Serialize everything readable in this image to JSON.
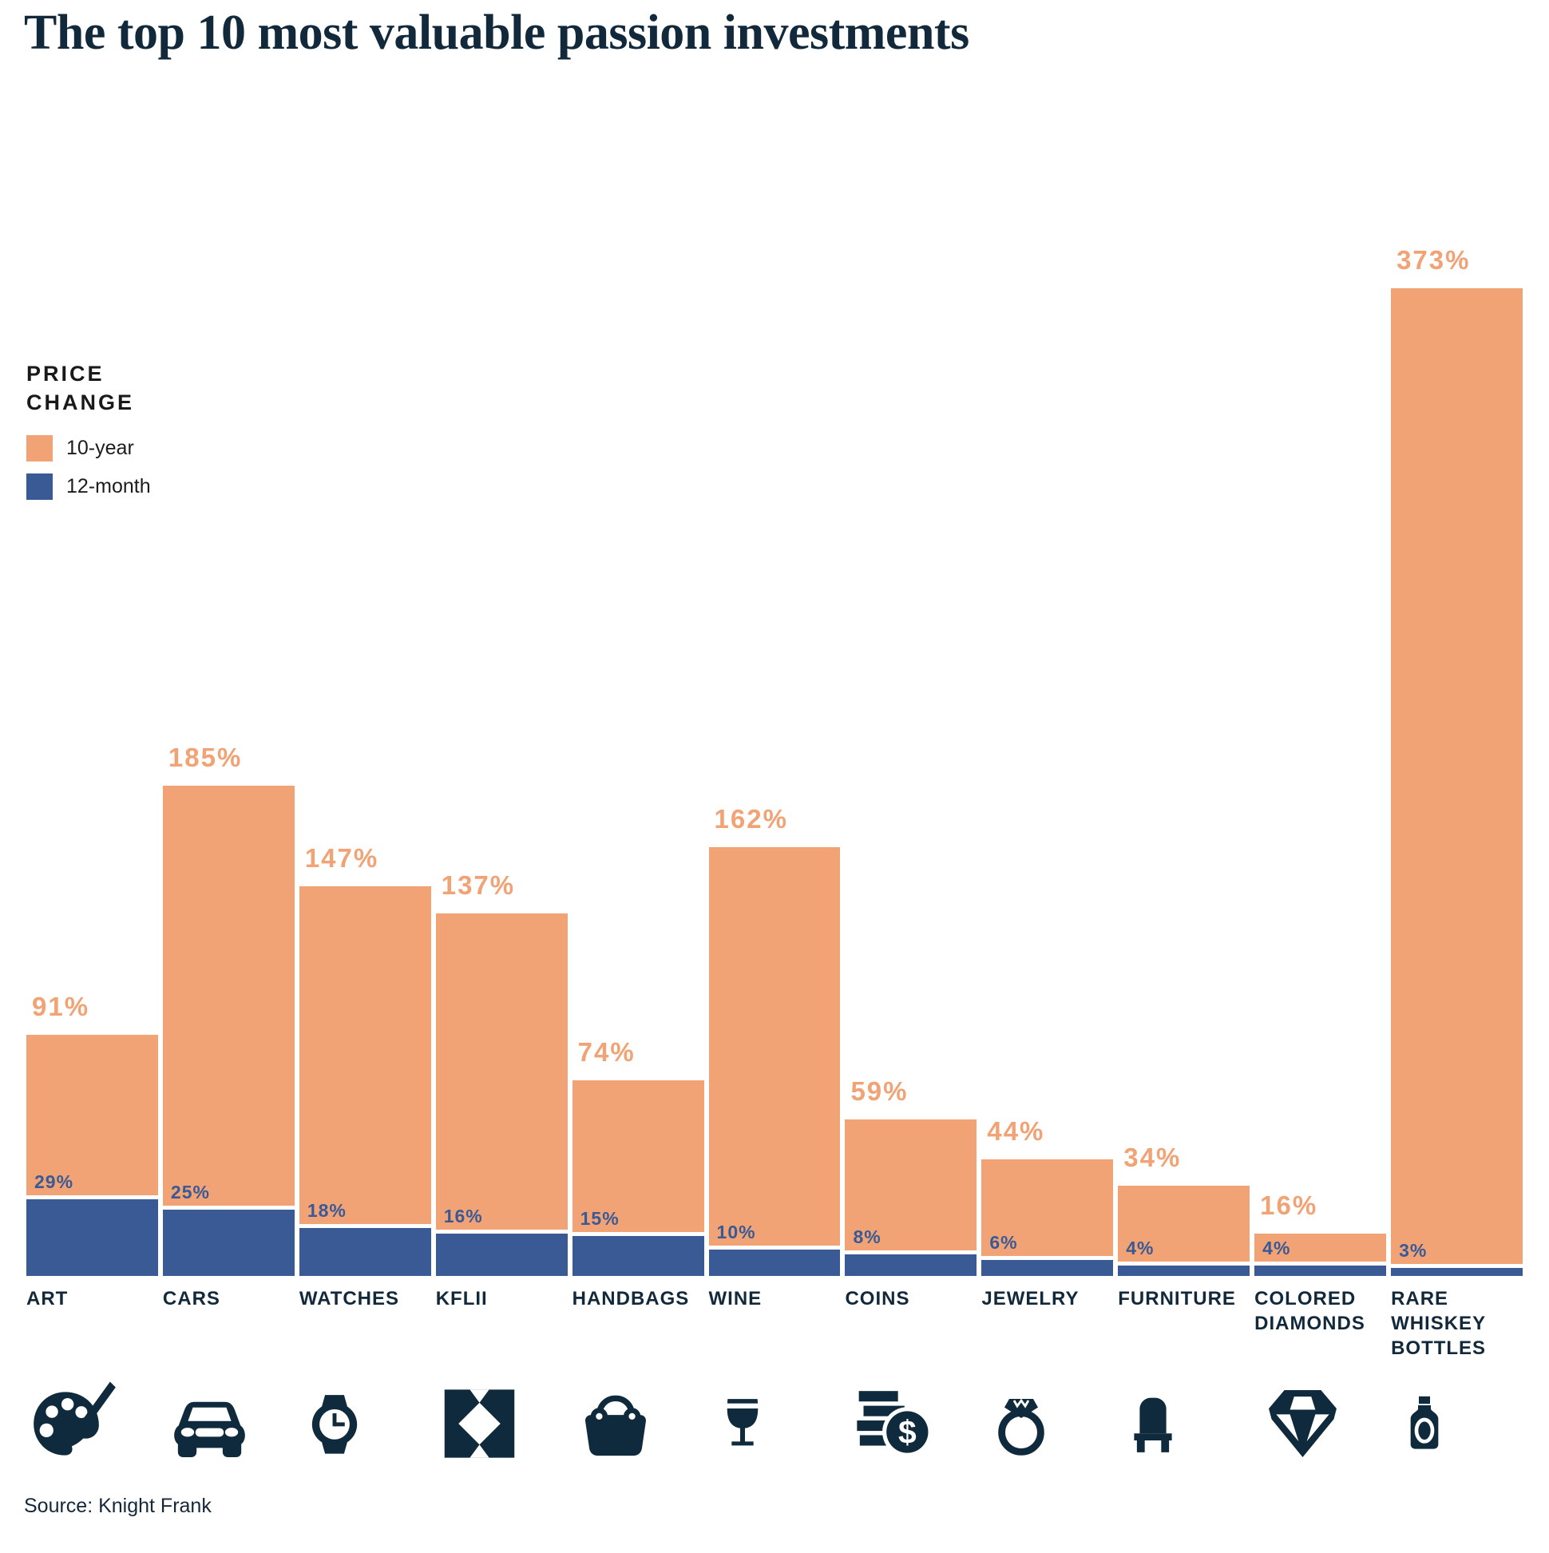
{
  "title": "The top 10 most valuable passion investments",
  "source": "Source: Knight Frank",
  "legend": {
    "title": "PRICE CHANGE",
    "items": [
      {
        "label": "10-year",
        "color": "#F1A375"
      },
      {
        "label": "12-month",
        "color": "#3A5A96"
      }
    ]
  },
  "colors": {
    "orange": "#F1A375",
    "blue": "#3A5A96",
    "navy": "#0F2A3C"
  },
  "chart_data": {
    "type": "bar",
    "title": "The top 10 most valuable passion investments",
    "xlabel": "",
    "ylabel": "Price change (%)",
    "ylim": [
      0,
      373
    ],
    "grid": false,
    "legend_position": "upper-left",
    "value_suffix": "%",
    "categories": [
      "ART",
      "CARS",
      "WATCHES",
      "KFLII",
      "HANDBAGS",
      "WINE",
      "COINS",
      "JEWELRY",
      "FURNITURE",
      "COLORED DIAMONDS",
      "RARE WHISKEY BOTTLES"
    ],
    "icons": [
      "palette-brush-icon",
      "car-icon",
      "watch-icon",
      "kflii-logo-icon",
      "handbag-icon",
      "wine-glass-icon",
      "coins-icon",
      "ring-icon",
      "chair-icon",
      "diamond-icon",
      "whiskey-bottle-icon"
    ],
    "series": [
      {
        "name": "10-year",
        "values": [
          91,
          185,
          147,
          137,
          74,
          162,
          59,
          44,
          34,
          16,
          373
        ]
      },
      {
        "name": "12-month",
        "values": [
          29,
          25,
          18,
          16,
          15,
          10,
          8,
          6,
          4,
          4,
          3
        ]
      }
    ]
  }
}
